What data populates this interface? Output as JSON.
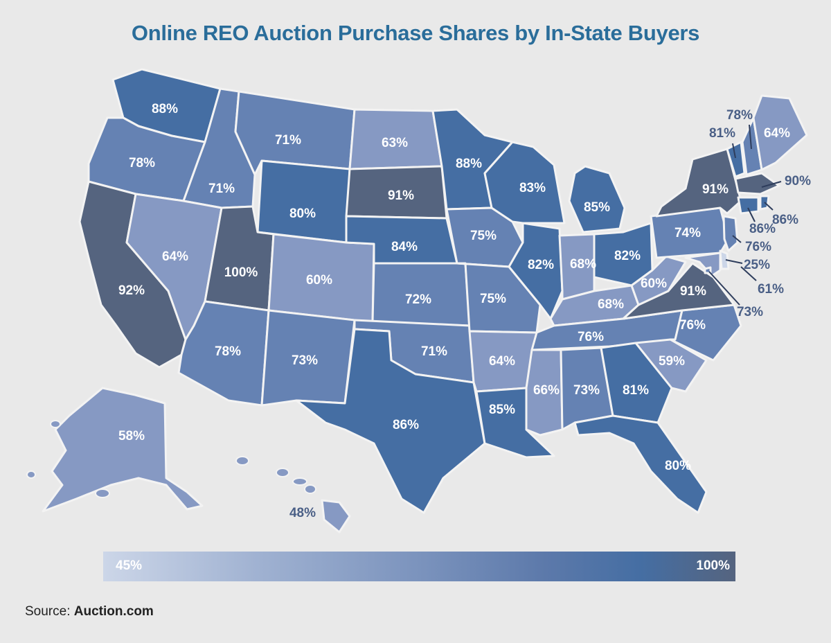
{
  "title": "Online REO Auction Purchase Shares by In-State Buyers",
  "legend": {
    "min_label": "45%",
    "max_label": "100%",
    "colors": [
      "#ccd6e8",
      "#456ea3",
      "#55647f"
    ]
  },
  "source": {
    "prefix": "Source:",
    "name": "Auction.com"
  },
  "states": [
    {
      "code": "WA",
      "value": "88%"
    },
    {
      "code": "OR",
      "value": "78%"
    },
    {
      "code": "CA",
      "value": "92%"
    },
    {
      "code": "ID",
      "value": "71%"
    },
    {
      "code": "NV",
      "value": "64%"
    },
    {
      "code": "MT",
      "value": "71%"
    },
    {
      "code": "WY",
      "value": "80%"
    },
    {
      "code": "UT",
      "value": "100%"
    },
    {
      "code": "AZ",
      "value": "78%"
    },
    {
      "code": "CO",
      "value": "60%"
    },
    {
      "code": "NM",
      "value": "73%"
    },
    {
      "code": "ND",
      "value": "63%"
    },
    {
      "code": "SD",
      "value": "91%"
    },
    {
      "code": "NE",
      "value": "84%"
    },
    {
      "code": "KS",
      "value": "72%"
    },
    {
      "code": "OK",
      "value": "71%"
    },
    {
      "code": "TX",
      "value": "86%"
    },
    {
      "code": "MN",
      "value": "88%"
    },
    {
      "code": "IA",
      "value": "75%"
    },
    {
      "code": "MO",
      "value": "75%"
    },
    {
      "code": "AR",
      "value": "64%"
    },
    {
      "code": "LA",
      "value": "85%"
    },
    {
      "code": "WI",
      "value": "83%"
    },
    {
      "code": "IL",
      "value": "82%"
    },
    {
      "code": "MI",
      "value": "85%"
    },
    {
      "code": "IN",
      "value": "68%"
    },
    {
      "code": "OH",
      "value": "82%"
    },
    {
      "code": "KY",
      "value": "68%"
    },
    {
      "code": "TN",
      "value": "76%"
    },
    {
      "code": "MS",
      "value": "66%"
    },
    {
      "code": "AL",
      "value": "73%"
    },
    {
      "code": "GA",
      "value": "81%"
    },
    {
      "code": "FL",
      "value": "80%"
    },
    {
      "code": "SC",
      "value": "59%"
    },
    {
      "code": "NC",
      "value": "76%"
    },
    {
      "code": "VA",
      "value": "91%"
    },
    {
      "code": "WV",
      "value": "60%"
    },
    {
      "code": "PA",
      "value": "74%"
    },
    {
      "code": "NY",
      "value": "91%"
    },
    {
      "code": "ME",
      "value": "64%"
    },
    {
      "code": "AK",
      "value": "58%"
    },
    {
      "code": "HI",
      "value": "48%"
    },
    {
      "code": "VT",
      "value": "81%"
    },
    {
      "code": "NH",
      "value": "78%"
    },
    {
      "code": "MA",
      "value": "90%"
    },
    {
      "code": "CT",
      "value": "86%"
    },
    {
      "code": "RI",
      "value": "86%"
    },
    {
      "code": "NJ",
      "value": "76%"
    },
    {
      "code": "DE",
      "value": "25%"
    },
    {
      "code": "MD",
      "value": "61%"
    },
    {
      "code": "DC",
      "value": "73%"
    }
  ]
}
